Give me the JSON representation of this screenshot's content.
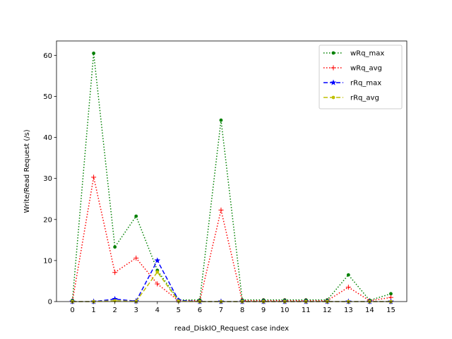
{
  "chart_data": {
    "type": "line",
    "title": "",
    "xlabel": "read_DiskIO_Request case index",
    "ylabel": "Write/Read Request (/s)",
    "x": [
      0,
      1,
      2,
      3,
      4,
      5,
      6,
      7,
      8,
      9,
      10,
      11,
      12,
      13,
      14,
      15
    ],
    "x_ticks": [
      "0",
      "1",
      "2",
      "3",
      "4",
      "5",
      "6",
      "7",
      "8",
      "9",
      "10",
      "11",
      "12",
      "13",
      "14",
      "15"
    ],
    "xlim": [
      -0.75,
      15.75
    ],
    "ylim": [
      0,
      63.5
    ],
    "y_ticks": [
      0,
      10,
      20,
      30,
      40,
      50,
      60
    ],
    "grid": false,
    "legend_position": "top-right",
    "series": [
      {
        "name": "wRq_max",
        "color": "#008000",
        "line_style": "dotted",
        "marker": "dot",
        "values": [
          0.3,
          60.5,
          13.3,
          20.8,
          7.6,
          0.4,
          0.4,
          44.2,
          0.4,
          0.4,
          0.4,
          0.4,
          0.4,
          6.5,
          0.3,
          1.9
        ]
      },
      {
        "name": "wRq_avg",
        "color": "#ff0000",
        "line_style": "dotted",
        "marker": "plus",
        "values": [
          0.1,
          30.3,
          7.1,
          10.6,
          4.3,
          0.2,
          0.2,
          22.3,
          0.2,
          0.2,
          0.2,
          0.2,
          0.2,
          3.5,
          0.2,
          1.0
        ]
      },
      {
        "name": "rRq_max",
        "color": "#0000ff",
        "line_style": "dashed",
        "marker": "star",
        "values": [
          0,
          0,
          0.6,
          0.1,
          10.0,
          0.3,
          0,
          0,
          0,
          0,
          0,
          0,
          0,
          0,
          0,
          0
        ]
      },
      {
        "name": "rRq_avg",
        "color": "#bfbf00",
        "line_style": "dashed",
        "marker": "dot",
        "values": [
          0,
          0,
          0.2,
          0.05,
          7.2,
          0.1,
          0,
          0,
          0,
          0,
          0,
          0,
          0,
          0,
          0,
          0
        ]
      }
    ]
  }
}
